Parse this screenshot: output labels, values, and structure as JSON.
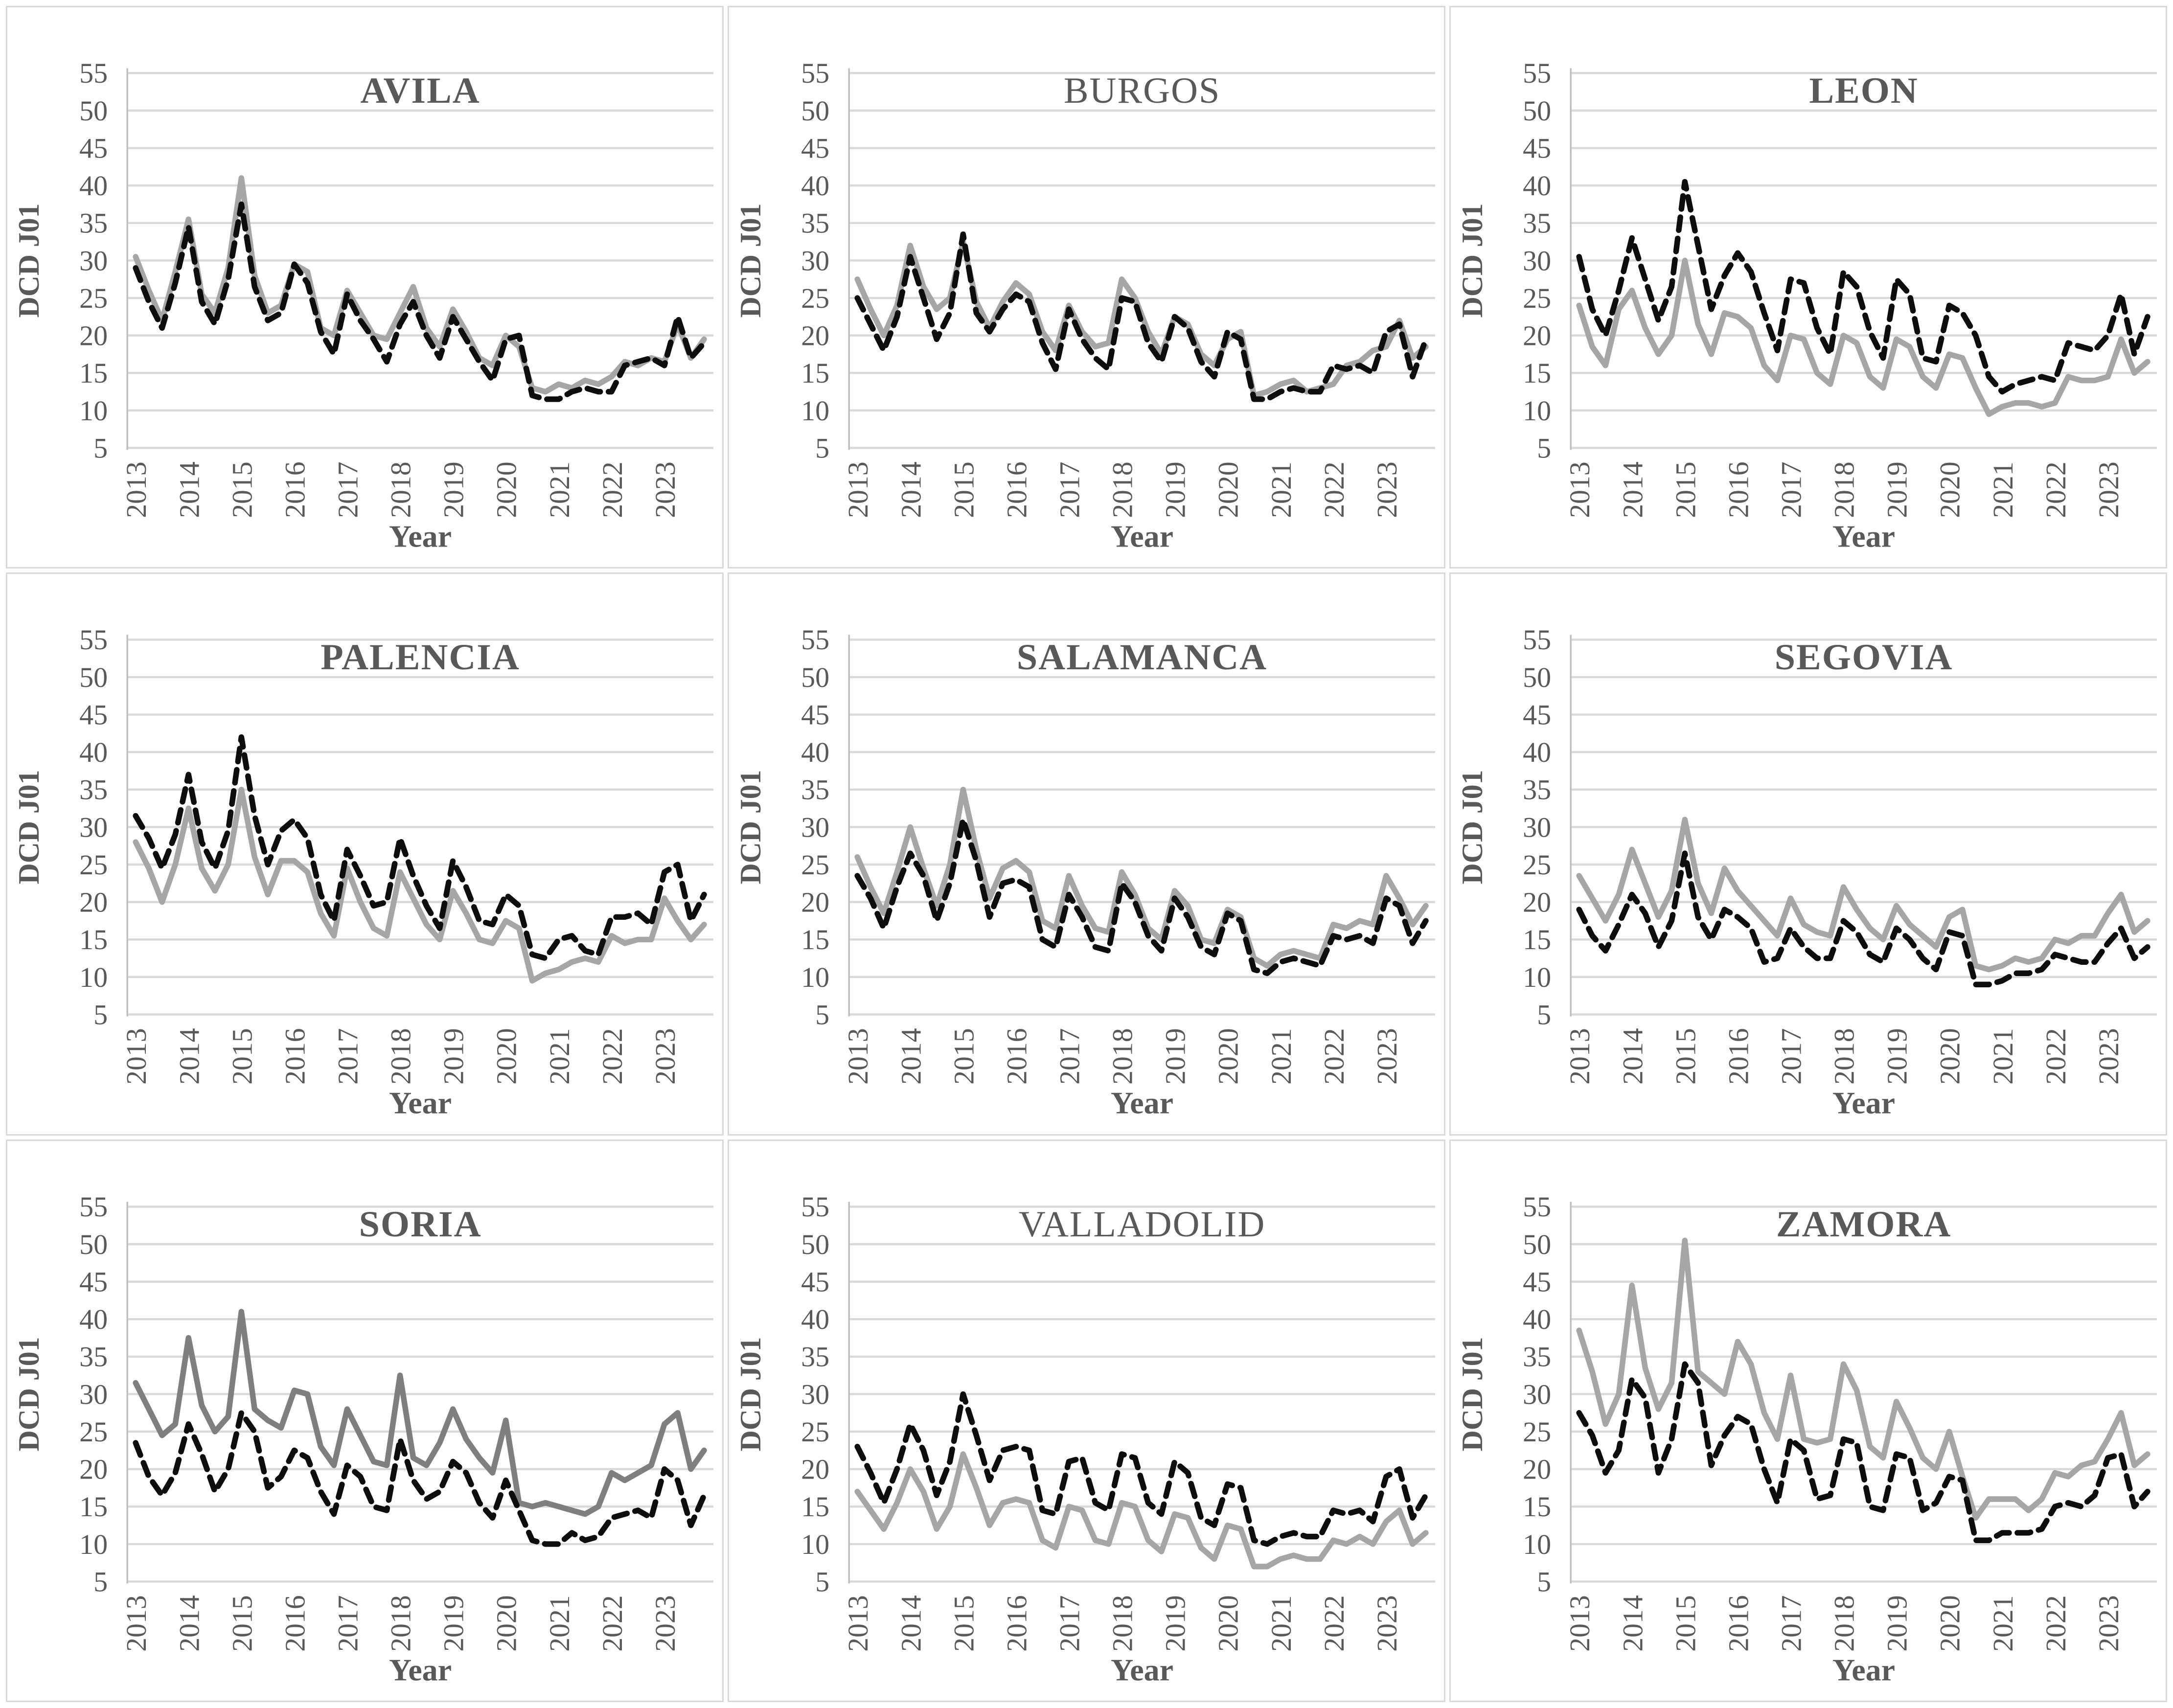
{
  "figure": {
    "layout": "3x3-grid",
    "background": "#FFFFFF",
    "panel_border_color": "#D9D9D9"
  },
  "colors": {
    "text_gray": "#595959",
    "gridline": "#D9D9D9",
    "axis_line": "#BFBFBF",
    "series_gray_default": "#A6A6A6",
    "series_gray_soria": "#7F7F7F",
    "series_black": "#0D0D0D"
  },
  "axes": {
    "y_label": "DCD J01",
    "x_label": "Year",
    "y_ticks": [
      55,
      50,
      45,
      40,
      35,
      30,
      25,
      20,
      15,
      10,
      5
    ],
    "y_min": 5,
    "y_max": 55,
    "year_tick_labels": [
      "2013",
      "2014",
      "2015",
      "2016",
      "2017",
      "2018",
      "2019",
      "2020",
      "2021",
      "2022",
      "2023"
    ],
    "points_per_year": 4,
    "x_categories": [
      "2013-Q1",
      "2013-Q2",
      "2013-Q3",
      "2013-Q4",
      "2014-Q1",
      "2014-Q2",
      "2014-Q3",
      "2014-Q4",
      "2015-Q1",
      "2015-Q2",
      "2015-Q3",
      "2015-Q4",
      "2016-Q1",
      "2016-Q2",
      "2016-Q3",
      "2016-Q4",
      "2017-Q1",
      "2017-Q2",
      "2017-Q3",
      "2017-Q4",
      "2018-Q1",
      "2018-Q2",
      "2018-Q3",
      "2018-Q4",
      "2019-Q1",
      "2019-Q2",
      "2019-Q3",
      "2019-Q4",
      "2020-Q1",
      "2020-Q2",
      "2020-Q3",
      "2020-Q4",
      "2021-Q1",
      "2021-Q2",
      "2021-Q3",
      "2021-Q4",
      "2022-Q1",
      "2022-Q2",
      "2022-Q3",
      "2022-Q4",
      "2023-Q1",
      "2023-Q2",
      "2023-Q3",
      "2023-Q4"
    ]
  },
  "chart_data": [
    {
      "type": "line",
      "title": "AVILA",
      "title_bold": true,
      "xlabel": "Year",
      "ylabel": "DCD J01",
      "ylim": [
        5,
        55
      ],
      "series": [
        {
          "name": "solid-gray",
          "style": "solid",
          "color": "#A6A6A6",
          "values": [
            30.5,
            26,
            22,
            28.5,
            35.5,
            25.5,
            23,
            29,
            41,
            28,
            23,
            24,
            29.5,
            28.5,
            21,
            20,
            26,
            23,
            20,
            19.5,
            23,
            26.5,
            21,
            18.5,
            23.5,
            20.5,
            17,
            16,
            20,
            18.5,
            13,
            12.5,
            13.5,
            13,
            14,
            13.5,
            14.5,
            16.5,
            16,
            17,
            16.5,
            21.5,
            17,
            19.5
          ]
        },
        {
          "name": "dashed-black",
          "style": "dashed",
          "color": "#0D0D0D",
          "values": [
            29,
            24.5,
            21,
            27,
            34.5,
            24.5,
            21.5,
            27.5,
            37.5,
            26.5,
            22,
            23,
            29.5,
            27,
            20.5,
            17.5,
            25.5,
            22,
            19.5,
            16.5,
            21.5,
            24.5,
            20,
            17,
            22.5,
            19.5,
            16.5,
            14,
            19.5,
            20,
            12,
            11.5,
            11.5,
            12.5,
            13,
            12.5,
            12.5,
            16,
            16.5,
            17,
            16,
            22.5,
            17,
            19
          ]
        }
      ]
    },
    {
      "type": "line",
      "title": "BURGOS",
      "title_bold": false,
      "xlabel": "Year",
      "ylabel": "DCD J01",
      "ylim": [
        5,
        55
      ],
      "series": [
        {
          "name": "solid-gray",
          "style": "solid",
          "color": "#A6A6A6",
          "values": [
            27.5,
            23.5,
            20,
            24,
            32,
            26.5,
            23.5,
            25,
            32.5,
            24.5,
            21,
            24.5,
            27,
            25.5,
            20.5,
            18,
            24,
            20.5,
            18.5,
            19,
            27.5,
            25,
            20.5,
            17.5,
            22.5,
            21.5,
            17.5,
            16,
            19.5,
            20.5,
            12,
            12.5,
            13.5,
            14,
            12.5,
            13,
            13.5,
            16,
            16.5,
            18,
            18.5,
            22,
            17,
            18.5
          ]
        },
        {
          "name": "dashed-black",
          "style": "dashed",
          "color": "#0D0D0D",
          "values": [
            25,
            21.5,
            18,
            22.5,
            30.5,
            25,
            19.5,
            23,
            33.5,
            23,
            20.5,
            23.5,
            25.5,
            24.5,
            19,
            15.5,
            23.5,
            19.5,
            17,
            15.5,
            25,
            24.5,
            19,
            16.5,
            22.5,
            21,
            16.5,
            14.5,
            20.5,
            19.5,
            11.5,
            11.5,
            12.5,
            13,
            12.5,
            12.5,
            16,
            15.5,
            16,
            15,
            20.5,
            21.5,
            14.5,
            19.5
          ]
        }
      ]
    },
    {
      "type": "line",
      "title": "LEON",
      "title_bold": true,
      "xlabel": "Year",
      "ylabel": "DCD J01",
      "ylim": [
        5,
        55
      ],
      "series": [
        {
          "name": "solid-gray",
          "style": "solid",
          "color": "#A6A6A6",
          "values": [
            24,
            18.5,
            16,
            23.5,
            26,
            21,
            17.5,
            20,
            30,
            21.5,
            17.5,
            23,
            22.5,
            21,
            16,
            14,
            20,
            19.5,
            15,
            13.5,
            20,
            19,
            14.5,
            13,
            19.5,
            18.5,
            14.5,
            13,
            17.5,
            17,
            13,
            9.5,
            10.5,
            11,
            11,
            10.5,
            11,
            14.5,
            14,
            14,
            14.5,
            19.5,
            15,
            16.5
          ]
        },
        {
          "name": "dashed-black",
          "style": "dashed",
          "color": "#0D0D0D",
          "values": [
            30.5,
            23.5,
            20,
            26,
            33,
            27.5,
            22,
            26.5,
            40.5,
            32,
            23.5,
            28,
            31,
            28.5,
            23,
            18,
            27.5,
            27,
            21,
            17.5,
            28.5,
            26.5,
            20.5,
            17,
            27.5,
            25.5,
            17,
            16.5,
            24,
            23,
            20,
            14.5,
            12.5,
            13.5,
            14,
            14.5,
            14,
            19,
            18.5,
            18,
            20,
            25.5,
            17.5,
            22.5
          ]
        }
      ]
    },
    {
      "type": "line",
      "title": "PALENCIA",
      "title_bold": true,
      "xlabel": "Year",
      "ylabel": "DCD J01",
      "ylim": [
        5,
        55
      ],
      "series": [
        {
          "name": "solid-gray",
          "style": "solid",
          "color": "#A6A6A6",
          "values": [
            28,
            24.5,
            20,
            25,
            32.5,
            24.5,
            21.5,
            25,
            35,
            26,
            21,
            25.5,
            25.5,
            24,
            18.5,
            15.5,
            24.5,
            20,
            16.5,
            15.5,
            24,
            20.5,
            17,
            15,
            21.5,
            18.5,
            15,
            14.5,
            17.5,
            16.5,
            9.5,
            10.5,
            11,
            12,
            12.5,
            12,
            15.5,
            14.5,
            15,
            15,
            20.5,
            17.5,
            15,
            17
          ]
        },
        {
          "name": "dashed-black",
          "style": "dashed",
          "color": "#0D0D0D",
          "values": [
            31.5,
            28.5,
            24.5,
            29,
            37,
            28,
            24.5,
            29.5,
            42,
            31.5,
            25,
            29.5,
            31,
            28.5,
            21,
            17.5,
            27,
            23.5,
            19.5,
            20,
            28.5,
            23.5,
            19.5,
            16.5,
            25.5,
            22,
            17.5,
            17,
            21,
            19.5,
            13,
            12.5,
            15,
            15.5,
            13.5,
            13,
            18,
            18,
            18.5,
            17,
            24,
            25,
            17.5,
            21
          ]
        }
      ]
    },
    {
      "type": "line",
      "title": "SALAMANCA",
      "title_bold": true,
      "xlabel": "Year",
      "ylabel": "DCD J01",
      "ylim": [
        5,
        55
      ],
      "series": [
        {
          "name": "solid-gray",
          "style": "solid",
          "color": "#A6A6A6",
          "values": [
            26,
            22,
            18.5,
            24,
            30,
            24.5,
            19.5,
            25,
            35,
            27,
            20.5,
            24.5,
            25.5,
            24,
            17.5,
            16.5,
            23.5,
            19.5,
            16.5,
            16,
            24,
            21,
            16.5,
            15,
            21.5,
            19.5,
            15,
            14.5,
            19,
            18,
            12.5,
            11.5,
            13,
            13.5,
            13,
            12.5,
            17,
            16.5,
            17.5,
            17,
            23.5,
            20.5,
            17,
            19.5
          ]
        },
        {
          "name": "dashed-black",
          "style": "dashed",
          "color": "#0D0D0D",
          "values": [
            23.5,
            20.5,
            16.5,
            22,
            26.5,
            23.5,
            17.5,
            22.5,
            31,
            25.5,
            18,
            22.5,
            23,
            22,
            15,
            14,
            21,
            18,
            14,
            13.5,
            22.5,
            20,
            15.5,
            13.5,
            20.5,
            18,
            14,
            13,
            18.5,
            17.5,
            11,
            10.5,
            12,
            12.5,
            12,
            11.5,
            15.5,
            15,
            15.5,
            14.5,
            20.5,
            19.5,
            14.5,
            17.5
          ]
        }
      ]
    },
    {
      "type": "line",
      "title": "SEGOVIA",
      "title_bold": true,
      "xlabel": "Year",
      "ylabel": "DCD J01",
      "ylim": [
        5,
        55
      ],
      "series": [
        {
          "name": "solid-gray",
          "style": "solid",
          "color": "#A6A6A6",
          "values": [
            23.5,
            20.5,
            17.5,
            21,
            27,
            22.5,
            18,
            21.5,
            31,
            22.5,
            18.5,
            24.5,
            21.5,
            19.5,
            17.5,
            15.5,
            20.5,
            17,
            16,
            15.5,
            22,
            19,
            16.5,
            15,
            19.5,
            17,
            15.5,
            14,
            18,
            19,
            11.5,
            11,
            11.5,
            12.5,
            12,
            12.5,
            15,
            14.5,
            15.5,
            15.5,
            18.5,
            21,
            16,
            17.5
          ]
        },
        {
          "name": "dashed-black",
          "style": "dashed",
          "color": "#0D0D0D",
          "values": [
            19,
            15.5,
            13.5,
            17,
            21,
            18.5,
            14,
            17.5,
            26.5,
            18,
            15,
            19,
            18,
            16.5,
            12,
            12.5,
            16.5,
            14,
            12.5,
            12.5,
            17.5,
            16,
            13,
            12,
            16.5,
            15,
            12.5,
            11,
            16,
            15.5,
            9,
            9,
            9.5,
            10.5,
            10.5,
            11,
            13,
            12.5,
            12,
            12,
            14.5,
            16.5,
            12.5,
            14
          ]
        }
      ]
    },
    {
      "type": "line",
      "title": "SORIA",
      "title_bold": true,
      "xlabel": "Year",
      "ylabel": "DCD J01",
      "ylim": [
        5,
        55
      ],
      "series": [
        {
          "name": "solid-gray",
          "style": "solid",
          "color": "#7F7F7F",
          "values": [
            31.5,
            28,
            24.5,
            26,
            37.5,
            28.5,
            25,
            27,
            41,
            28,
            26.5,
            25.5,
            30.5,
            30,
            23,
            20.5,
            28,
            24.5,
            21,
            20.5,
            32.5,
            21.5,
            20.5,
            23.5,
            28,
            24,
            21.5,
            19.5,
            26.5,
            15.5,
            15,
            15.5,
            15,
            14.5,
            14,
            15,
            19.5,
            18.5,
            19.5,
            20.5,
            26,
            27.5,
            20,
            22.5
          ]
        },
        {
          "name": "dashed-black",
          "style": "dashed",
          "color": "#0D0D0D",
          "values": [
            23.5,
            19,
            16.5,
            19.5,
            26,
            22,
            17,
            20,
            27.5,
            25,
            17.5,
            19,
            22.5,
            21.5,
            17,
            14,
            20.5,
            19,
            15,
            14.5,
            24,
            18.5,
            16,
            17,
            21,
            19.5,
            15.5,
            13.5,
            18.5,
            14.5,
            10.5,
            10,
            10,
            11.5,
            10.5,
            11,
            13.5,
            14,
            14.5,
            13.5,
            20,
            18.5,
            12.5,
            16.5
          ]
        }
      ]
    },
    {
      "type": "line",
      "title": "VALLADOLID",
      "title_bold": false,
      "xlabel": "Year",
      "ylabel": "DCD J01",
      "ylim": [
        5,
        55
      ],
      "series": [
        {
          "name": "solid-gray",
          "style": "solid",
          "color": "#A6A6A6",
          "values": [
            17,
            14.5,
            12,
            15.5,
            20,
            17,
            12,
            15,
            22,
            17.5,
            12.5,
            15.5,
            16,
            15.5,
            10.5,
            9.5,
            15,
            14.5,
            10.5,
            10,
            15.5,
            15,
            10.5,
            9,
            14,
            13.5,
            9.5,
            8,
            12.5,
            12,
            7,
            7,
            8,
            8.5,
            8,
            8,
            10.5,
            10,
            11,
            10,
            13,
            14.5,
            10,
            11.5
          ]
        },
        {
          "name": "dashed-black",
          "style": "dashed",
          "color": "#0D0D0D",
          "values": [
            23,
            19.5,
            15.5,
            20,
            26,
            22.5,
            16.5,
            21,
            30,
            24.5,
            18.5,
            22.5,
            23,
            22.5,
            14.5,
            14,
            21,
            21.5,
            15.5,
            14.5,
            22,
            21.5,
            15.5,
            14,
            21,
            19.5,
            13.5,
            12.5,
            18,
            17.5,
            10.5,
            10,
            11,
            11.5,
            11,
            11,
            14.5,
            14,
            14.5,
            13,
            19,
            20,
            13.5,
            16.5
          ]
        }
      ]
    },
    {
      "type": "line",
      "title": "ZAMORA",
      "title_bold": true,
      "xlabel": "Year",
      "ylabel": "DCD J01",
      "ylim": [
        5,
        55
      ],
      "series": [
        {
          "name": "solid-gray",
          "style": "solid",
          "color": "#A6A6A6",
          "values": [
            38.5,
            33,
            26,
            30,
            44.5,
            33.5,
            28,
            31.5,
            50.5,
            33,
            31.5,
            30,
            37,
            34,
            27.5,
            24,
            32.5,
            24,
            23.5,
            24,
            34,
            30.5,
            23,
            21.5,
            29,
            25.5,
            21.5,
            20,
            25,
            19,
            13.5,
            16,
            16,
            16,
            14.5,
            16,
            19.5,
            19,
            20.5,
            21,
            24,
            27.5,
            20.5,
            22
          ]
        },
        {
          "name": "dashed-black",
          "style": "dashed",
          "color": "#0D0D0D",
          "values": [
            27.5,
            24.5,
            19.5,
            22.5,
            32,
            29.5,
            19.5,
            24,
            34,
            31.5,
            20.5,
            24.5,
            27,
            26,
            20,
            15.5,
            24,
            22.5,
            16,
            16.5,
            24,
            23.5,
            15,
            14.5,
            22,
            21.5,
            14.5,
            15.5,
            19,
            18.5,
            10.5,
            10.5,
            11.5,
            11.5,
            11.5,
            12,
            15,
            15.5,
            15,
            16.5,
            21.5,
            22,
            15,
            17
          ]
        }
      ]
    }
  ]
}
